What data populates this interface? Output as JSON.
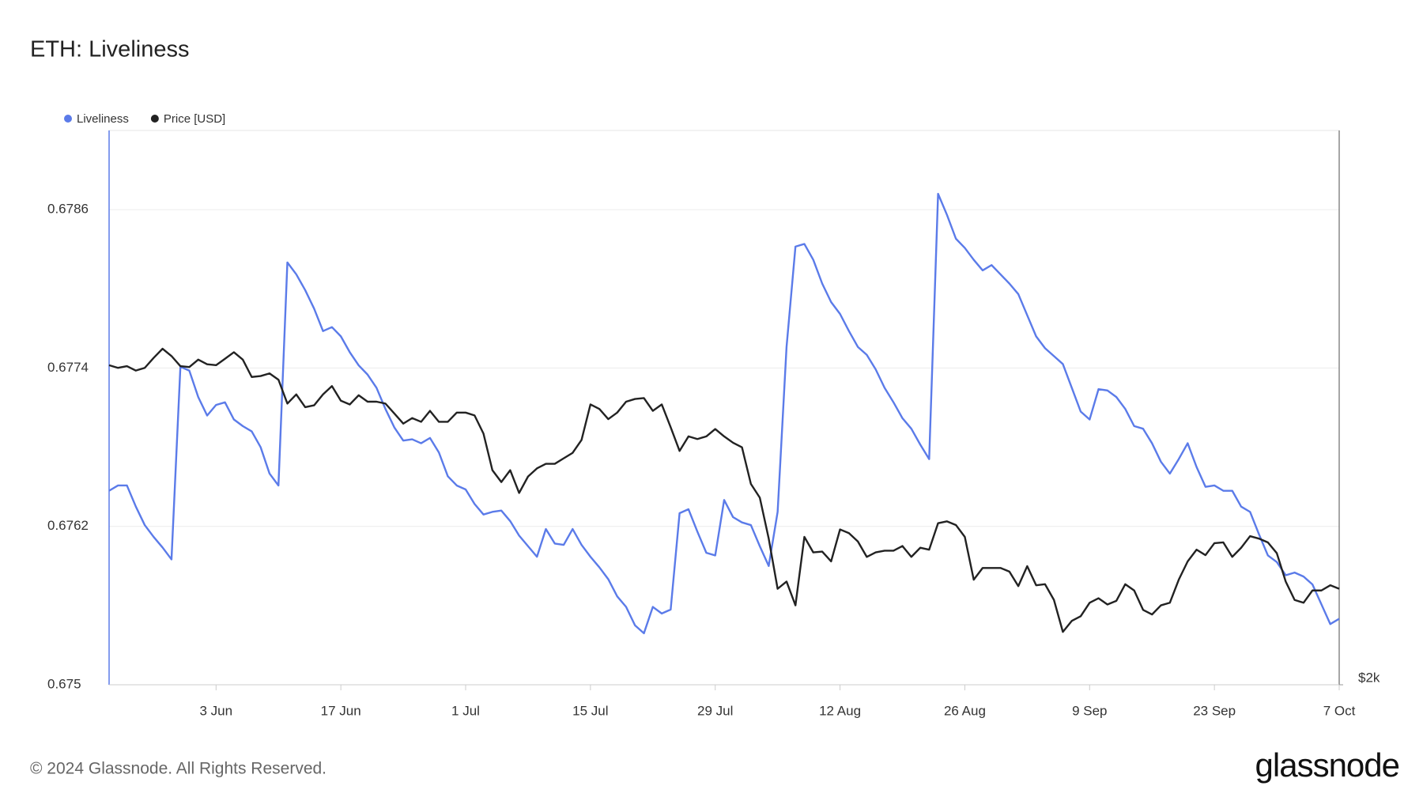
{
  "chart_data": {
    "type": "line",
    "title": "ETH: Liveliness",
    "categories": [
      null,
      null,
      null,
      null,
      null,
      null,
      null,
      null,
      null,
      null,
      null,
      null,
      "3 Jun",
      null,
      null,
      null,
      null,
      null,
      null,
      null,
      null,
      null,
      null,
      null,
      null,
      null,
      "17 Jun",
      null,
      null,
      null,
      null,
      null,
      null,
      null,
      null,
      null,
      null,
      null,
      null,
      null,
      "1 Jul",
      null,
      null,
      null,
      null,
      null,
      null,
      null,
      null,
      null,
      null,
      null,
      null,
      null,
      "15 Jul",
      null,
      null,
      null,
      null,
      null,
      null,
      null,
      null,
      null,
      null,
      null,
      null,
      null,
      "29 Jul",
      null,
      null,
      null,
      null,
      null,
      null,
      null,
      null,
      null,
      null,
      null,
      null,
      null,
      "12 Aug",
      null,
      null,
      null,
      null,
      null,
      null,
      null,
      null,
      null,
      null,
      null,
      null,
      null,
      "26 Aug",
      null,
      null,
      null,
      null,
      null,
      null,
      null,
      null,
      null,
      null,
      null,
      null,
      null,
      "9 Sep",
      null,
      null,
      null,
      null,
      null,
      null,
      null,
      null,
      null,
      null,
      null,
      null,
      null,
      "23 Sep",
      null,
      null,
      null,
      null,
      null,
      null,
      null,
      null,
      null,
      null,
      null,
      null,
      null,
      "7 Oct"
    ],
    "series": [
      {
        "name": "Liveliness",
        "color": "#5b7be9",
        "values": [
          0.67647,
          0.67651,
          0.67651,
          0.67635,
          0.67621,
          0.67612,
          0.67604,
          0.67595,
          0.67741,
          0.67738,
          0.67718,
          0.67704,
          0.67712,
          0.67714,
          0.67701,
          0.67696,
          0.67692,
          0.6768,
          0.6766,
          0.67651,
          0.6782,
          0.67811,
          0.67799,
          0.67785,
          0.67768,
          0.67771,
          0.67764,
          0.67752,
          0.67742,
          0.67735,
          0.67725,
          0.67709,
          0.67695,
          0.67685,
          0.67686,
          0.67683,
          0.67687,
          0.67676,
          0.67658,
          0.67651,
          0.67648,
          0.67637,
          0.67629,
          0.67631,
          0.67632,
          0.67624,
          0.67613,
          0.67605,
          0.67597,
          0.67618,
          0.67607,
          0.67606,
          0.67618,
          0.67606,
          0.67597,
          0.67589,
          0.6758,
          0.67567,
          0.67559,
          0.67545,
          0.67539,
          0.67559,
          0.67554,
          0.67557,
          0.6763,
          0.67633,
          0.67616,
          0.676,
          0.67598,
          0.6764,
          0.67627,
          0.67623,
          0.67621,
          0.67605,
          0.6759,
          0.67631,
          0.67756,
          0.67832,
          0.67834,
          0.67822,
          0.67804,
          0.6779,
          0.67781,
          0.67768,
          0.67756,
          0.6775,
          0.67739,
          0.67725,
          0.67714,
          0.67702,
          0.67694,
          0.67682,
          0.67671,
          0.67872,
          0.67856,
          0.67838,
          0.67831,
          0.67822,
          0.67814,
          0.67818,
          0.67811,
          0.67804,
          0.67796,
          0.6778,
          0.67764,
          0.67755,
          0.67749,
          0.67743,
          0.67725,
          0.67707,
          0.67701,
          0.67724,
          0.67723,
          0.67718,
          0.67709,
          0.67696,
          0.67694,
          0.67683,
          0.67669,
          0.6766,
          0.67671,
          0.67683,
          0.67665,
          0.6765,
          0.67651,
          0.67647,
          0.67647,
          0.67635,
          0.67631,
          0.67614,
          0.67598,
          0.67593,
          0.67583,
          0.67585,
          0.67582,
          0.67576,
          0.67561,
          0.67546,
          0.6755
        ]
      },
      {
        "name": "Price [USD]",
        "color": "#222222",
        "axis": "y2",
        "values": [
          3768,
          3748,
          3761,
          3728,
          3748,
          3823,
          3893,
          3837,
          3761,
          3754,
          3810,
          3775,
          3768,
          3816,
          3866,
          3810,
          3681,
          3688,
          3707,
          3661,
          3492,
          3556,
          3467,
          3480,
          3556,
          3615,
          3512,
          3486,
          3550,
          3505,
          3505,
          3492,
          3424,
          3356,
          3393,
          3368,
          3442,
          3368,
          3368,
          3430,
          3430,
          3411,
          3290,
          3060,
          2989,
          3060,
          2925,
          3022,
          3071,
          3099,
          3099,
          3133,
          3167,
          3249,
          3486,
          3455,
          3386,
          3430,
          3505,
          3524,
          3530,
          3442,
          3486,
          3332,
          3179,
          3272,
          3255,
          3272,
          3320,
          3272,
          3231,
          3202,
          2978,
          2898,
          2672,
          2419,
          2454,
          2341,
          2681,
          2600,
          2604,
          2554,
          2721,
          2701,
          2657,
          2577,
          2600,
          2609,
          2609,
          2633,
          2577,
          2624,
          2614,
          2755,
          2765,
          2745,
          2681,
          2463,
          2521,
          2521,
          2521,
          2503,
          2432,
          2530,
          2436,
          2441,
          2366,
          2221,
          2270,
          2291,
          2353,
          2374,
          2345,
          2362,
          2441,
          2411,
          2320,
          2299,
          2341,
          2353,
          2463,
          2554,
          2614,
          2586,
          2648,
          2652,
          2577,
          2624,
          2685,
          2672,
          2652,
          2596,
          2454,
          2366,
          2353,
          2411,
          2411,
          2436,
          2419
        ]
      }
    ],
    "ylim": [
      0.675,
      0.6792
    ],
    "yticks": [
      0.675,
      0.6762,
      0.6774,
      0.6786
    ],
    "y2lim": [
      2000,
      6000
    ],
    "y2ticks": [
      {
        "value": 2000,
        "label": "$2k"
      }
    ],
    "y2log": true,
    "grid": true,
    "legend": "top-left"
  },
  "copyright": "© 2024 Glassnode. All Rights Reserved.",
  "logo": "glassnode"
}
